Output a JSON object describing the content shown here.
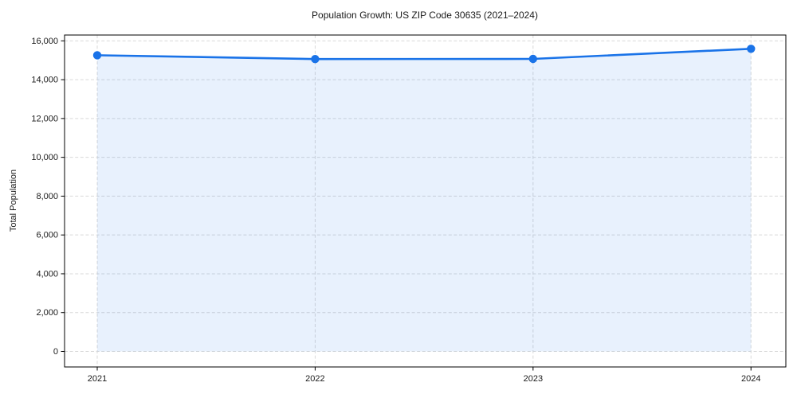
{
  "chart_data": {
    "type": "line",
    "variant": "line-with-area-fill",
    "title": "Population Growth: US ZIP Code 30635 (2021–2024)",
    "xlabel": "",
    "ylabel": "Total Population",
    "x": [
      2021,
      2022,
      2023,
      2024
    ],
    "x_labels": [
      "2021",
      "2022",
      "2023",
      "2024"
    ],
    "series": [
      {
        "name": "Total Population",
        "values": [
          15260,
          15060,
          15070,
          15590
        ]
      }
    ],
    "yticks": [
      0,
      2000,
      4000,
      6000,
      8000,
      10000,
      12000,
      14000,
      16000
    ],
    "ytick_labels": [
      "0",
      "2,000",
      "4,000",
      "6,000",
      "8,000",
      "10,000",
      "12,000",
      "14,000",
      "16,000"
    ],
    "ylim": [
      -800,
      16300
    ],
    "xlim": [
      2020.85,
      2024.16
    ],
    "grid": true,
    "grid_style": "dashed",
    "legend_position": "none",
    "colors": {
      "line": "#1a73e8",
      "marker": "#1a73e8",
      "fill": "rgba(26,115,232,0.10)",
      "grid": "#d9d9d9",
      "axis": "#000000",
      "text": "#1a1a1a",
      "background": "#ffffff"
    }
  }
}
